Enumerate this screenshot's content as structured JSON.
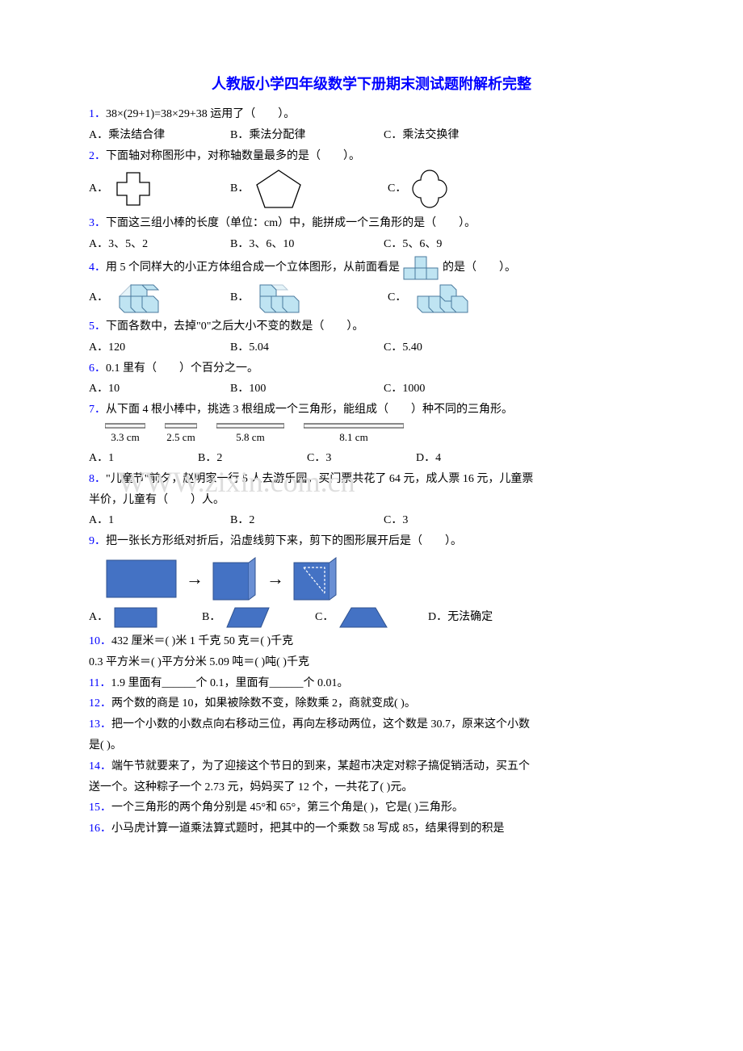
{
  "title": "人教版小学四年级数学下册期末测试题附解析完整",
  "watermark": "WWW.zixin.com.cn",
  "colors": {
    "title": "#0000ff",
    "qnum": "#0000ff",
    "text": "#000000",
    "watermark": "#dddddd",
    "cube_fill": "#bfe4f2",
    "cube_stroke": "#4a7a9e",
    "shape_stroke": "#000000",
    "fold_fill": "#4472c4",
    "background": "#ffffff"
  },
  "fonts": {
    "base_size": 14,
    "title_size": 18,
    "title_weight": "bold",
    "family": "SimSun"
  },
  "q1": {
    "num": "1．",
    "text": "38×(29+1)=38×29+38 运用了（　　）。",
    "a": "A．乘法结合律",
    "b": "B．乘法分配律",
    "c": "C．乘法交换律"
  },
  "q2": {
    "num": "2．",
    "text": "下面轴对称图形中，对称轴数量最多的是（　　）。",
    "a": "A．",
    "b": "B．",
    "c": "C．"
  },
  "q3": {
    "num": "3．",
    "text": "下面这三组小棒的长度（单位：cm）中，能拼成一个三角形的是（　　）。",
    "a": "A．3、5、2",
    "b": "B．3、6、10",
    "c": "C．5、6、9"
  },
  "q4": {
    "num": "4．",
    "text_before": "用 5 个同样大的小正方体组合成一个立体图形，从前面看是",
    "text_after": "的是（　　）。",
    "a": "A．",
    "b": "B．",
    "c": "C．"
  },
  "q5": {
    "num": "5．",
    "text": "下面各数中，去掉\"0\"之后大小不变的数是（　　）。",
    "a": "A．120",
    "b": "B．5.04",
    "c": "C．5.40"
  },
  "q6": {
    "num": "6．",
    "text": "0.1 里有（　　）个百分之一。",
    "a": "A．10",
    "b": "B．100",
    "c": "C．1000"
  },
  "q7": {
    "num": "7．",
    "text": "从下面 4 根小棒中，挑选 3 根组成一个三角形，能组成（　　）种不同的三角形。",
    "rulers": [
      "3.3 cm",
      "2.5 cm",
      "5.8 cm",
      "8.1 cm"
    ],
    "ruler_widths": [
      50,
      40,
      84,
      124
    ],
    "a": "A．1",
    "b": "B．2",
    "c": "C．3",
    "d": "D．4"
  },
  "q8": {
    "num": "8．",
    "line1": "\"儿童节\"前夕，赵明家一行 5 人去游乐园，买门票共花了 64 元，成人票 16 元，儿童票",
    "line2": "半价，儿童有（　　）人。",
    "a": "A．1",
    "b": "B．2",
    "c": "C．3"
  },
  "q9": {
    "num": "9．",
    "text": "把一张长方形纸对折后，沿虚线剪下来，剪下的图形展开后是（　　）。",
    "a": "A．",
    "b": "B．",
    "c": "C．",
    "d": "D．无法确定"
  },
  "q10": {
    "num": "10．",
    "line1": "432 厘米＝(     )米        1 千克 50 克＝(     )千克",
    "line2": "0.3 平方米＝(     )平方分米        5.09 吨＝(     )吨(     )千克"
  },
  "q11": {
    "num": "11．",
    "text": "1.9 里面有______个 0.1，里面有______个 0.01。"
  },
  "q12": {
    "num": "12．",
    "text": "两个数的商是 10，如果被除数不变，除数乘 2，商就变成(     )。"
  },
  "q13": {
    "num": "13．",
    "line1": "把一个小数的小数点向右移动三位，再向左移动两位，这个数是 30.7，原来这个小数",
    "line2": "是(     )。"
  },
  "q14": {
    "num": "14．",
    "line1": "端午节就要来了，为了迎接这个节日的到来，某超市决定对粽子搞促销活动，买五个",
    "line2": "送一个。这种粽子一个 2.73 元，妈妈买了 12 个，一共花了(     )元。"
  },
  "q15": {
    "num": "15．",
    "text": "一个三角形的两个角分别是 45°和 65°，第三个角是(     )，它是(     )三角形。"
  },
  "q16": {
    "num": "16．",
    "text": "小马虎计算一道乘法算式题时，把其中的一个乘数 58 写成 85，结果得到的积是"
  }
}
